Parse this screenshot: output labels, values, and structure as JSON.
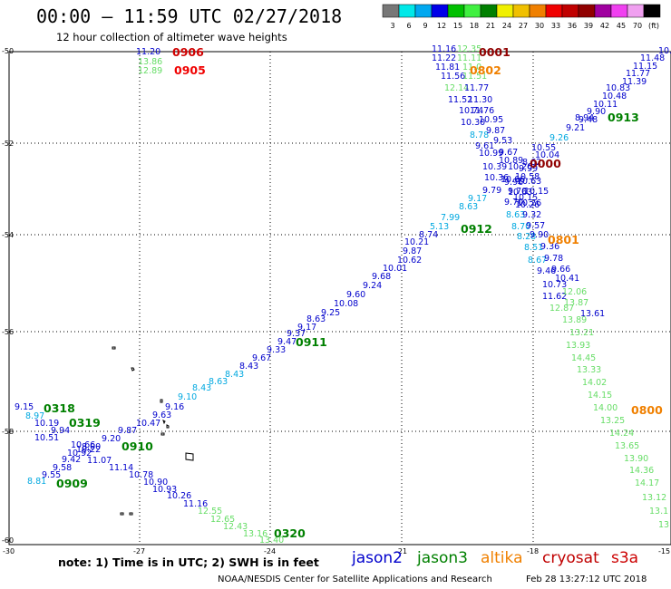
{
  "title": "00:00 – 11:59 UTC 02/27/2018",
  "subtitle": "12 hour collection of altimeter wave heights",
  "colorbar": {
    "colors": [
      "#777777",
      "#00e8e8",
      "#00a8f0",
      "#0000e8",
      "#00c000",
      "#40f040",
      "#008000",
      "#f0f000",
      "#f0c000",
      "#f08000",
      "#f00000",
      "#c00000",
      "#900000",
      "#a000a0",
      "#f040f0",
      "#f0a0f0",
      "#000000"
    ],
    "labels": [
      "3",
      "6",
      "9",
      "12",
      "15",
      "18",
      "21",
      "24",
      "27",
      "30",
      "33",
      "36",
      "39",
      "42",
      "45",
      "70",
      "(ft)"
    ]
  },
  "axes": {
    "lat_labels": [
      "-50",
      "-52",
      "-54",
      "-56",
      "-58",
      "-60"
    ],
    "lon_labels": [
      "-30",
      "-27",
      "-24",
      "-21",
      "-18",
      "-15"
    ]
  },
  "colors": {
    "jason2": "#0000cc",
    "jason3": "#008000",
    "altika": "#f08000",
    "cryosat": "#c00000",
    "s3a": "#cc0000",
    "ramp_cyan": "#00a8e0",
    "ramp_light_green": "#66dd66"
  },
  "time_labels": [
    {
      "text": "0906",
      "color": "#d00000"
    },
    {
      "text": "0905",
      "color": "#f00000"
    },
    {
      "text": "0001",
      "color": "#900000"
    },
    {
      "text": "0802",
      "color": "#f08000"
    },
    {
      "text": "0913",
      "color": "#008000"
    },
    {
      "text": "0000",
      "color": "#900000"
    },
    {
      "text": "0912",
      "color": "#008000"
    },
    {
      "text": "0801",
      "color": "#f08000"
    },
    {
      "text": "0911",
      "color": "#008000"
    },
    {
      "text": "0800",
      "color": "#f08000"
    },
    {
      "text": "0318",
      "color": "#008000"
    },
    {
      "text": "0319",
      "color": "#008000"
    },
    {
      "text": "0910",
      "color": "#008000"
    },
    {
      "text": "0909",
      "color": "#008000"
    },
    {
      "text": "0320",
      "color": "#008000"
    }
  ],
  "tracks": {
    "top_left": [
      "11.20",
      "13.86",
      "12.89"
    ],
    "ne_sw": [
      "10.4",
      "11.48",
      "11.15",
      "11.77",
      "11.39",
      "10.83",
      "10.48",
      "10.11",
      "9.90",
      "9.48",
      "8.94",
      "9.21",
      "9.26",
      "10.55",
      "10.04",
      "8.62",
      "9.99",
      "10.58",
      "9.96",
      "10.63",
      "10.15",
      "10.26",
      "9.17",
      "8.63",
      "7.99",
      "5.13",
      "8.74",
      "10.21",
      "9.87",
      "10.62",
      "10.01",
      "9.68",
      "9.24",
      "9.60",
      "10.08",
      "9.25",
      "8.63",
      "9.17",
      "9.37",
      "9.47",
      "9.33",
      "9.67",
      "8.43",
      "8.43",
      "8.63",
      "8.43",
      "9.10",
      "9.16",
      "9.63",
      "10.47",
      "9.87",
      "9.20",
      "8.00",
      "10.22",
      "9.42",
      "9.58",
      "9.55",
      "8.81"
    ],
    "north_south": [
      "11.16",
      "12.35",
      "11.22",
      "11.11",
      "11.81",
      "11.0",
      "11.56",
      "11.51",
      "12.14",
      "11.77",
      "11.52",
      "11.30",
      "10.74",
      "11.76",
      "10.30",
      "10.95",
      "8.78",
      "9.87",
      "9.61",
      "9.53",
      "9.67",
      "10.99",
      "10.39",
      "10.89",
      "10.36",
      "10.26",
      "10.66",
      "10.63",
      "9.79",
      "9.70",
      "10.15",
      "9.70",
      "10.26",
      "8.63",
      "9.32",
      "8.70",
      "9.57",
      "8.28",
      "9.90",
      "8.51",
      "9.36",
      "8.67",
      "9.78",
      "9.46",
      "9.66",
      "10.73",
      "10.41",
      "11.62",
      "12.06",
      "12.87",
      "13.87",
      "13.61",
      "13.89",
      "13.21",
      "13.93",
      "14.45",
      "13.33",
      "14.02",
      "14.15",
      "14.00",
      "13.25",
      "14.24",
      "13.65",
      "13.90",
      "14.36",
      "14.17",
      "13.12",
      "13.1",
      "13"
    ],
    "west": [
      "9.15",
      "8.97",
      "10.19",
      "9.94",
      "10.51",
      "10.66",
      "10.92",
      "11.07",
      "11.14",
      "10.78",
      "10.90",
      "10.93",
      "10.26",
      "11.16",
      "12.55",
      "12.65",
      "12.43",
      "13.16",
      "13.40"
    ]
  },
  "note": "note: 1) Time is in UTC; 2) SWH is in feet",
  "legend": {
    "jason2": "jason2",
    "jason3": "jason3",
    "altika": "altika",
    "cryosat": "cryosat",
    "s3a": "s3a"
  },
  "footer": {
    "credit": "NOAA/NESDIS Center for Satellite Applications and Research",
    "date": "Feb 28 13:27:12 UTC 2018"
  }
}
